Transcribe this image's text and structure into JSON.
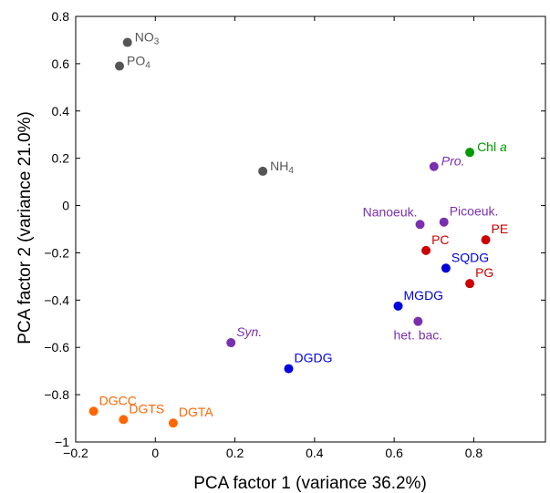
{
  "chart_data": {
    "type": "scatter",
    "title": "",
    "xlabel": "PCA  factor 1 (variance 36.2%)",
    "ylabel": "PCA factor 2  (variance 21.0%)",
    "xlim": [
      -0.2,
      0.98
    ],
    "ylim": [
      -1,
      0.8
    ],
    "xticks": [
      -0.2,
      0,
      0.2,
      0.4,
      0.6,
      0.8
    ],
    "xtick_labels": [
      "−0.2",
      "0",
      "0.2",
      "0.4",
      "0.6",
      "0.8"
    ],
    "yticks": [
      -1,
      -0.8,
      -0.6,
      -0.4,
      -0.2,
      0,
      0.2,
      0.4,
      0.6,
      0.8
    ],
    "ytick_labels": [
      "−1",
      "−0.8",
      "−0.6",
      "−0.4",
      "−0.2",
      "0",
      "0.2",
      "0.4",
      "0.6",
      "0.8"
    ],
    "grid": false,
    "points": [
      {
        "label": "NO",
        "sub": "3",
        "x": -0.07,
        "y": 0.69,
        "color": "#555555",
        "anchor": "right"
      },
      {
        "label": "PO",
        "sub": "4",
        "x": -0.09,
        "y": 0.59,
        "color": "#555555",
        "anchor": "right"
      },
      {
        "label": "NH",
        "sub": "4",
        "x": 0.27,
        "y": 0.145,
        "color": "#555555",
        "anchor": "right"
      },
      {
        "label": "Chl ",
        "label_italic": "a",
        "x": 0.79,
        "y": 0.225,
        "color": "#009900",
        "anchor": "right"
      },
      {
        "label": "Pro.",
        "italic": true,
        "x": 0.7,
        "y": 0.165,
        "color": "#7a2fb0",
        "anchor": "right"
      },
      {
        "label": "Nanoeuk.",
        "x": 0.665,
        "y": -0.08,
        "color": "#7a2fb0",
        "anchor": "above-left"
      },
      {
        "label": "Picoeuk.",
        "x": 0.725,
        "y": -0.07,
        "color": "#7a2fb0",
        "anchor": "above-right"
      },
      {
        "label": "PE",
        "x": 0.83,
        "y": -0.145,
        "color": "#cc0000",
        "anchor": "above-right"
      },
      {
        "label": "PC",
        "x": 0.68,
        "y": -0.19,
        "color": "#cc0000",
        "anchor": "above-right"
      },
      {
        "label": "SQDG",
        "x": 0.73,
        "y": -0.265,
        "color": "#0000dd",
        "anchor": "above-right"
      },
      {
        "label": "PG",
        "x": 0.79,
        "y": -0.33,
        "color": "#cc0000",
        "anchor": "above-right"
      },
      {
        "label": "MGDG",
        "x": 0.61,
        "y": -0.425,
        "color": "#0000dd",
        "anchor": "above-right"
      },
      {
        "label": "het. bac.",
        "x": 0.66,
        "y": -0.49,
        "color": "#7a2fb0",
        "anchor": "below"
      },
      {
        "label": "Syn.",
        "italic": true,
        "x": 0.19,
        "y": -0.58,
        "color": "#7a2fb0",
        "anchor": "above-right"
      },
      {
        "label": "DGDG",
        "x": 0.335,
        "y": -0.69,
        "color": "#0000dd",
        "anchor": "above-right"
      },
      {
        "label": "DGCC",
        "x": -0.155,
        "y": -0.87,
        "color": "#ff6600",
        "anchor": "above-right"
      },
      {
        "label": "DGTS",
        "x": -0.08,
        "y": -0.905,
        "color": "#ff6600",
        "anchor": "above-right"
      },
      {
        "label": "DGTA",
        "x": 0.045,
        "y": -0.92,
        "color": "#ff6600",
        "anchor": "above-right"
      }
    ]
  }
}
